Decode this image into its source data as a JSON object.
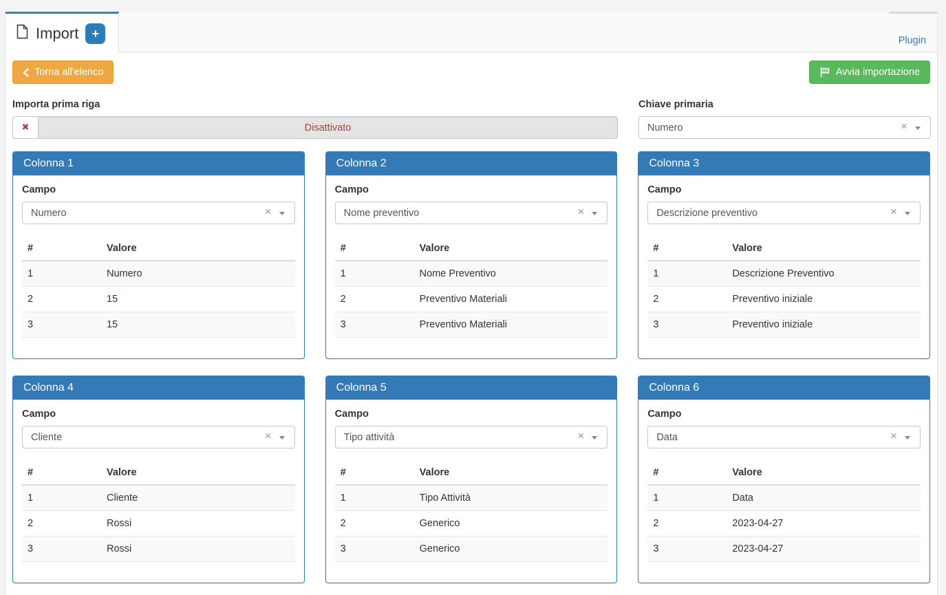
{
  "colors": {
    "accent_blue": "#337ab7",
    "tab_highlight_blue": "#2f85c0",
    "warning_orange": "#eda843",
    "success_green": "#5cb85c",
    "danger_red": "#a94442"
  },
  "header": {
    "tab_title": "Import",
    "add_tab_label": "+",
    "plugin_link": "Plugin"
  },
  "toolbar": {
    "back_label": "Torna all'elenco",
    "start_label": "Avvia importazione"
  },
  "import_first_row": {
    "label": "Importa prima riga",
    "status": "Disattivato",
    "clear_icon": "✖"
  },
  "primary_key": {
    "label": "Chiave primaria",
    "value": "Numero",
    "clear_icon": "×"
  },
  "columns": [
    {
      "title": "Colonna 1",
      "field_label": "Campo",
      "field_value": "Numero",
      "clear_icon": "×",
      "headers": [
        "#",
        "Valore"
      ],
      "rows": [
        [
          "1",
          "Numero"
        ],
        [
          "2",
          "15"
        ],
        [
          "3",
          "15"
        ]
      ]
    },
    {
      "title": "Colonna 2",
      "field_label": "Campo",
      "field_value": "Nome preventivo",
      "clear_icon": "×",
      "headers": [
        "#",
        "Valore"
      ],
      "rows": [
        [
          "1",
          "Nome Preventivo"
        ],
        [
          "2",
          "Preventivo Materiali"
        ],
        [
          "3",
          "Preventivo Materiali"
        ]
      ]
    },
    {
      "title": "Colonna 3",
      "field_label": "Campo",
      "field_value": "Descrizione preventivo",
      "clear_icon": "×",
      "headers": [
        "#",
        "Valore"
      ],
      "rows": [
        [
          "1",
          "Descrizione Preventivo"
        ],
        [
          "2",
          "Preventivo iniziale"
        ],
        [
          "3",
          "Preventivo iniziale"
        ]
      ]
    },
    {
      "title": "Colonna 4",
      "field_label": "Campo",
      "field_value": "Cliente",
      "clear_icon": "×",
      "headers": [
        "#",
        "Valore"
      ],
      "rows": [
        [
          "1",
          "Cliente"
        ],
        [
          "2",
          "Rossi"
        ],
        [
          "3",
          "Rossi"
        ]
      ]
    },
    {
      "title": "Colonna 5",
      "field_label": "Campo",
      "field_value": "Tipo attività",
      "clear_icon": "×",
      "headers": [
        "#",
        "Valore"
      ],
      "rows": [
        [
          "1",
          "Tipo Attività"
        ],
        [
          "2",
          "Generico"
        ],
        [
          "3",
          "Generico"
        ]
      ]
    },
    {
      "title": "Colonna 6",
      "field_label": "Campo",
      "field_value": "Data",
      "clear_icon": "×",
      "headers": [
        "#",
        "Valore"
      ],
      "rows": [
        [
          "1",
          "Data"
        ],
        [
          "2",
          "2023-04-27"
        ],
        [
          "3",
          "2023-04-27"
        ]
      ]
    }
  ]
}
